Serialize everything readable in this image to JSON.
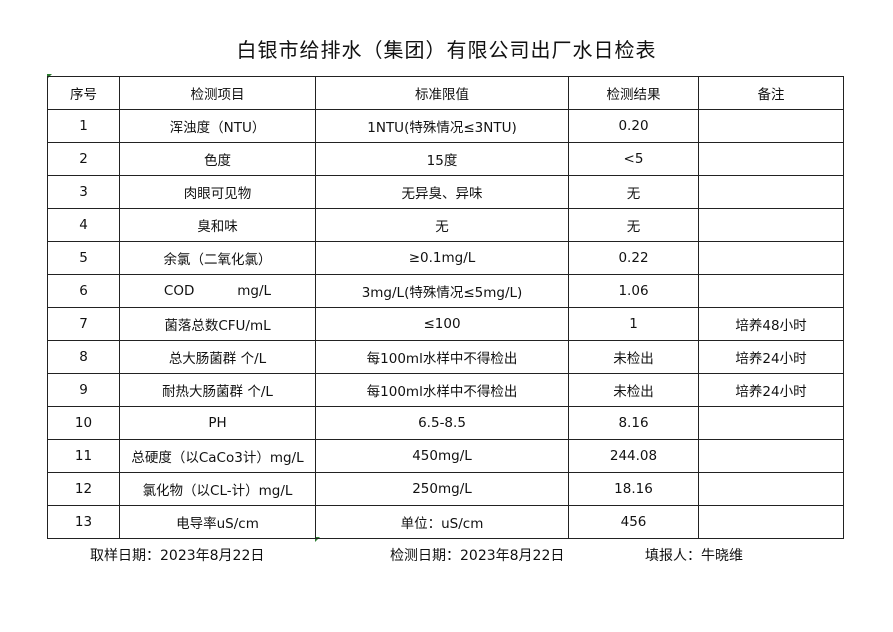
{
  "title": "白银市给排水（集团）有限公司出厂水日检表",
  "headers": [
    "序号",
    "检测项目",
    "标准限值",
    "检测结果",
    "备注"
  ],
  "rows": [
    [
      "1",
      "浑浊度（NTU）",
      "1NTU(特殊情况≤3NTU)",
      "0.20",
      ""
    ],
    [
      "2",
      "色度",
      "15度",
      "<5",
      ""
    ],
    [
      "3",
      "肉眼可见物",
      "无异臭、异味",
      "无",
      ""
    ],
    [
      "4",
      "臭和味",
      "无",
      "无",
      ""
    ],
    [
      "5",
      "余氯（二氧化氯）",
      "≥0.1mg/L",
      "0.22",
      ""
    ],
    [
      "6",
      "COD          mg/L",
      "3mg/L(特殊情况≤5mg/L)",
      "1.06",
      ""
    ],
    [
      "7",
      "菌落总数CFU/mL",
      "≤100",
      "1",
      "培养48小时"
    ],
    [
      "8",
      "总大肠菌群 个/L",
      "每100ml水样中不得检出",
      "未检出",
      "培养24小时"
    ],
    [
      "9",
      "耐热大肠菌群 个/L",
      "每100ml水样中不得检出",
      "未检出",
      "培养24小时"
    ],
    [
      "10",
      "PH",
      "6.5-8.5",
      "8.16",
      ""
    ],
    [
      "11",
      "总硬度（以CaCo3计）mg/L",
      "450mg/L",
      "244.08",
      ""
    ],
    [
      "12",
      "氯化物（以CL-计）mg/L",
      "250mg/L",
      "18.16",
      ""
    ],
    [
      "13",
      "电导率uS/cm",
      "单位：uS/cm",
      "456",
      ""
    ]
  ],
  "footer": {
    "sample_date": "取样日期：2023年8月22日",
    "test_date": "检测日期：2023年8月22日",
    "reporter": "填报人：牛晓维"
  }
}
